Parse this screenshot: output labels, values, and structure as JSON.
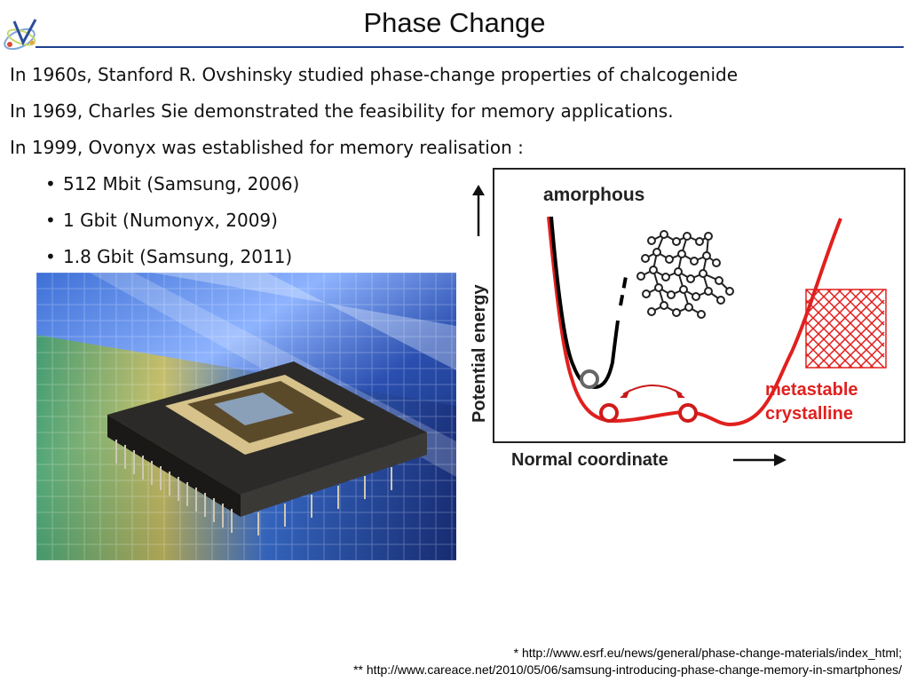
{
  "slide": {
    "title": "Phase Change",
    "lines": [
      "In 1960s, Stanford R. Ovshinsky studied phase-change properties of chalcogenide",
      "In 1969, Charles Sie demonstrated the feasibility for memory applications.",
      "In 1999, Ovonyx was established for memory realisation :"
    ],
    "bullets": [
      "512 Mbit (Samsung, 2006)",
      "1 Gbit (Numonyx, 2009)",
      "1.8 Gbit (Samsung, 2011)"
    ],
    "bullet_glyph": "•"
  },
  "diagram": {
    "label_amorphous": "amorphous",
    "label_metastable": "metastable",
    "label_crystalline": "crystalline",
    "ylabel": "Potential energy",
    "xlabel": "Normal coordinate",
    "curve_color": "#e0201e"
  },
  "footer": {
    "ref1": "* http://www.esrf.eu/news/general/phase-change-materials/index_html;",
    "ref2": "** http://www.careace.net/2010/05/06/samsung-introducing-phase-change-memory-in-smartphones/"
  }
}
